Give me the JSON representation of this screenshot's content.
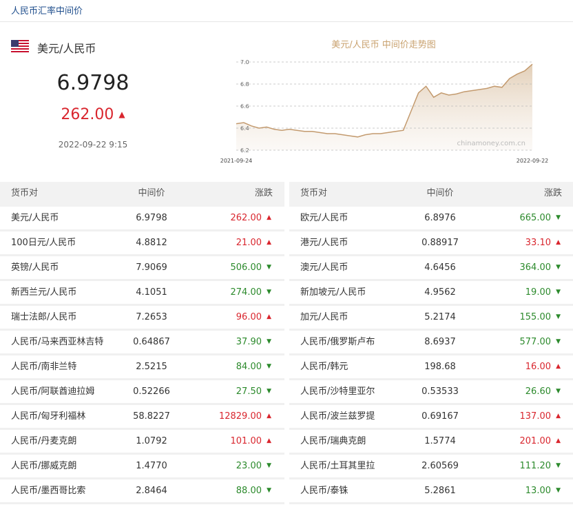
{
  "header": {
    "title": "人民币汇率中间价"
  },
  "summary": {
    "pair": "美元/人民币",
    "rate": "6.9798",
    "change": "262.00",
    "arrow": "▲",
    "time": "2022-09-22 9:15"
  },
  "chart_data": {
    "type": "line",
    "title": "美元/人民币 中间价走势图",
    "watermark": "chinamoney.com.cn",
    "color": "#c39a6e",
    "categories": [
      "2021-09-24",
      null,
      null,
      null,
      null,
      null,
      null,
      null,
      null,
      null,
      null,
      null,
      null,
      null,
      null,
      null,
      null,
      null,
      null,
      null,
      null,
      null,
      null,
      null,
      null,
      null,
      null,
      null,
      null,
      null,
      null,
      null,
      null,
      null,
      null,
      null,
      null,
      null,
      null,
      "2022-09-22"
    ],
    "values": [
      6.44,
      6.45,
      6.42,
      6.4,
      6.41,
      6.39,
      6.38,
      6.39,
      6.38,
      6.37,
      6.37,
      6.36,
      6.35,
      6.35,
      6.34,
      6.33,
      6.32,
      6.34,
      6.35,
      6.35,
      6.36,
      6.37,
      6.38,
      6.55,
      6.72,
      6.78,
      6.68,
      6.72,
      6.7,
      6.71,
      6.73,
      6.74,
      6.75,
      6.76,
      6.78,
      6.77,
      6.85,
      6.89,
      6.92,
      6.98
    ],
    "ylim": [
      6.2,
      7.0
    ],
    "yticks": [
      {
        "value": 7.0,
        "label": "7.0"
      },
      6.8,
      6.6,
      6.4,
      6.2
    ],
    "grid": true
  },
  "tables": [
    {
      "headers": [
        "货币对",
        "中间价",
        "涨跌"
      ],
      "rows": [
        {
          "pair": "美元/人民币",
          "price": "6.9798",
          "change": "262.00",
          "arrow": "▲"
        },
        {
          "pair": "100日元/人民币",
          "price": "4.8812",
          "change": "21.00",
          "arrow": "▲"
        },
        {
          "pair": "英镑/人民币",
          "price": "7.9069",
          "change": "506.00",
          "arrow": "▼"
        },
        {
          "pair": "新西兰元/人民币",
          "price": "4.1051",
          "change": "274.00",
          "arrow": "▼"
        },
        {
          "pair": "瑞士法郎/人民币",
          "price": "7.2653",
          "change": "96.00",
          "arrow": "▲"
        },
        {
          "pair": "人民币/马来西亚林吉特",
          "price": "0.64867",
          "change": "37.90",
          "arrow": "▼"
        },
        {
          "pair": "人民币/南非兰特",
          "price": "2.5215",
          "change": "84.00",
          "arrow": "▼"
        },
        {
          "pair": "人民币/阿联酋迪拉姆",
          "price": "0.52266",
          "change": "27.50",
          "arrow": "▼"
        },
        {
          "pair": "人民币/匈牙利福林",
          "price": "58.8227",
          "change": "12829.00",
          "arrow": "▲"
        },
        {
          "pair": "人民币/丹麦克朗",
          "price": "1.0792",
          "change": "101.00",
          "arrow": "▲"
        },
        {
          "pair": "人民币/挪威克朗",
          "price": "1.4770",
          "change": "23.00",
          "arrow": "▼"
        },
        {
          "pair": "人民币/墨西哥比索",
          "price": "2.8464",
          "change": "88.00",
          "arrow": "▼"
        }
      ]
    },
    {
      "headers": [
        "货币对",
        "中间价",
        "涨跌"
      ],
      "rows": [
        {
          "pair": "欧元/人民币",
          "price": "6.8976",
          "change": "665.00",
          "arrow": "▼"
        },
        {
          "pair": "港元/人民币",
          "price": "0.88917",
          "change": "33.10",
          "arrow": "▲"
        },
        {
          "pair": "澳元/人民币",
          "price": "4.6456",
          "change": "364.00",
          "arrow": "▼"
        },
        {
          "pair": "新加坡元/人民币",
          "price": "4.9562",
          "change": "19.00",
          "arrow": "▼"
        },
        {
          "pair": "加元/人民币",
          "price": "5.2174",
          "change": "155.00",
          "arrow": "▼"
        },
        {
          "pair": "人民币/俄罗斯卢布",
          "price": "8.6937",
          "change": "577.00",
          "arrow": "▼"
        },
        {
          "pair": "人民币/韩元",
          "price": "198.68",
          "change": "16.00",
          "arrow": "▲"
        },
        {
          "pair": "人民币/沙特里亚尔",
          "price": "0.53533",
          "change": "26.60",
          "arrow": "▼"
        },
        {
          "pair": "人民币/波兰兹罗提",
          "price": "0.69167",
          "change": "137.00",
          "arrow": "▲"
        },
        {
          "pair": "人民币/瑞典克朗",
          "price": "1.5774",
          "change": "201.00",
          "arrow": "▲"
        },
        {
          "pair": "人民币/土耳其里拉",
          "price": "2.60569",
          "change": "111.20",
          "arrow": "▼"
        },
        {
          "pair": "人民币/泰铢",
          "price": "5.2861",
          "change": "13.00",
          "arrow": "▼"
        }
      ]
    }
  ]
}
